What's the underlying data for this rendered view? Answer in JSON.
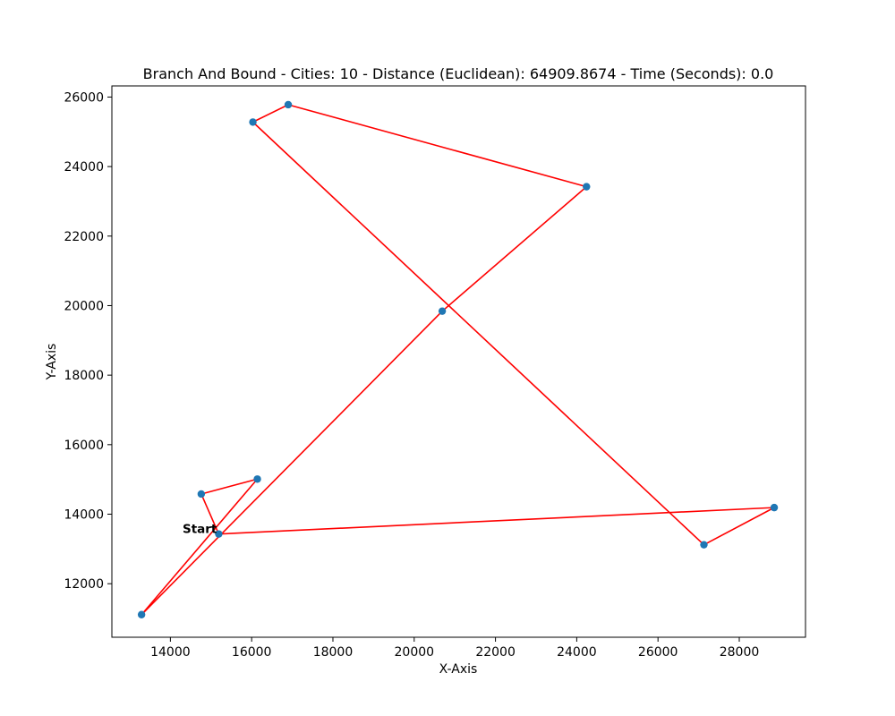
{
  "chart_data": {
    "type": "line",
    "title": "Branch And Bound - Cities: 10 - Distance (Euclidean): 64909.8674 - Time (Seconds): 0.0",
    "xlabel": "X-Axis",
    "ylabel": "Y-Axis",
    "xlim": [
      12560,
      29630
    ],
    "ylim": [
      10460,
      26320
    ],
    "xticks": [
      14000,
      16000,
      18000,
      20000,
      22000,
      24000,
      26000,
      28000
    ],
    "yticks": [
      12000,
      14000,
      16000,
      18000,
      20000,
      22000,
      24000,
      26000
    ],
    "grid": false,
    "legend": "none",
    "colors": {
      "points": "#1f77b4",
      "route": "#ff0000"
    },
    "points": [
      {
        "x": 15190,
        "y": 13430
      },
      {
        "x": 16140,
        "y": 15010
      },
      {
        "x": 14760,
        "y": 14580
      },
      {
        "x": 13290,
        "y": 11110
      },
      {
        "x": 20690,
        "y": 19840
      },
      {
        "x": 24240,
        "y": 23420
      },
      {
        "x": 16900,
        "y": 25780
      },
      {
        "x": 16030,
        "y": 25280
      },
      {
        "x": 27130,
        "y": 13120
      },
      {
        "x": 28860,
        "y": 14190
      }
    ],
    "route_order": [
      0,
      2,
      1,
      3,
      4,
      5,
      6,
      7,
      8,
      9,
      0
    ],
    "annotation": {
      "text": "Start",
      "x": 15190,
      "y": 13430
    }
  }
}
